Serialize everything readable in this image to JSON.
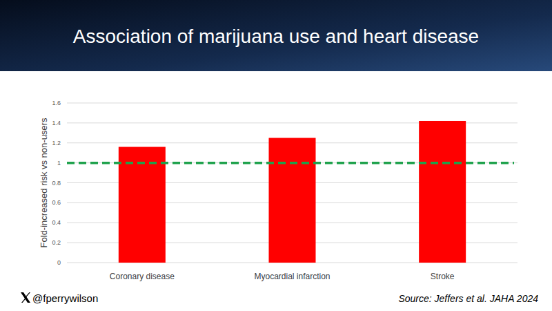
{
  "chart_data": {
    "type": "bar",
    "title": "Association of marijuana use and heart disease",
    "y_label": "Fold-increased risk vs non-users",
    "categories": [
      "Coronary disease",
      "Myocardial infarction",
      "Stroke"
    ],
    "values": [
      1.16,
      1.25,
      1.42
    ],
    "color": "#ff0000",
    "reference_line": 1,
    "ylim": [
      0,
      1.6
    ],
    "yticks": [
      0,
      0.2,
      0.4,
      0.6,
      0.8,
      1,
      1.2,
      1.4,
      1.6
    ],
    "grid": true,
    "annotations": [
      "@fperrywilson",
      "Source: Jeffers et al. JAHA 2024"
    ]
  }
}
